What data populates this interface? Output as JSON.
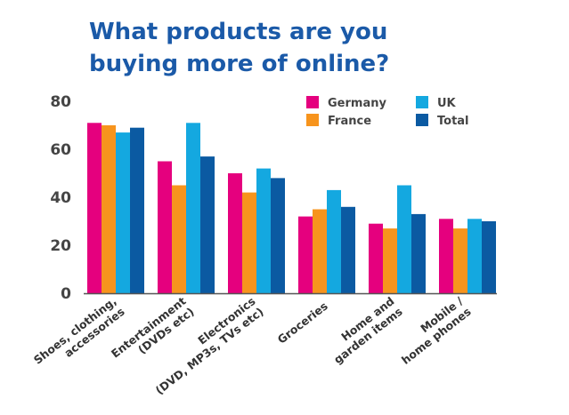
{
  "chart_data": {
    "type": "bar",
    "title_lines": [
      "What products are you",
      "buying more of online?"
    ],
    "categories": [
      [
        "Shoes, clothing,",
        "accessories"
      ],
      [
        "Entertainment",
        "(DVDs etc)"
      ],
      [
        "Electronics",
        "(DVD, MP3s, TVs etc)"
      ],
      [
        "Groceries"
      ],
      [
        "Home and",
        "garden items"
      ],
      [
        "Mobile /",
        "home phones"
      ]
    ],
    "series": [
      {
        "name": "Germany",
        "color": "#e5007e",
        "values": [
          71,
          55,
          50,
          32,
          29,
          31
        ]
      },
      {
        "name": "France",
        "color": "#f7941d",
        "values": [
          70,
          45,
          42,
          35,
          27,
          27
        ]
      },
      {
        "name": "UK",
        "color": "#14a8e0",
        "values": [
          67,
          71,
          52,
          43,
          45,
          31
        ]
      },
      {
        "name": "Total",
        "color": "#0b5aa2",
        "values": [
          69,
          57,
          48,
          36,
          33,
          30
        ]
      }
    ],
    "yticks": [
      0,
      20,
      40,
      60,
      80
    ],
    "ylim": [
      0,
      80
    ],
    "grid": false,
    "legend_position": "top-right"
  }
}
